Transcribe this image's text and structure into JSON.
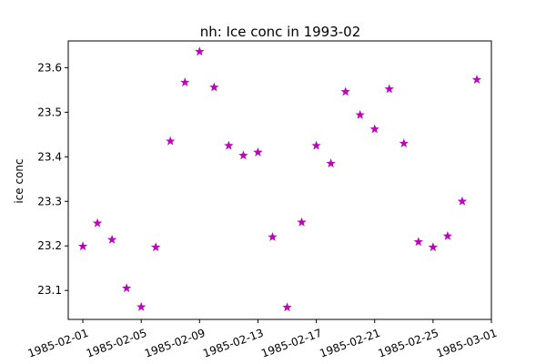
{
  "chart_data": {
    "type": "scatter",
    "title": "nh: Ice conc in 1993-02",
    "xlabel": "",
    "ylabel": "ice conc",
    "xlim": [
      "1985-01-31",
      "1985-03-01"
    ],
    "ylim": [
      23.035,
      23.66
    ],
    "x_ticks": [
      "1985-02-01",
      "1985-02-05",
      "1985-02-09",
      "1985-02-13",
      "1985-02-17",
      "1985-02-21",
      "1985-02-25",
      "1985-03-01"
    ],
    "y_ticks": [
      23.1,
      23.2,
      23.3,
      23.4,
      23.5,
      23.6
    ],
    "y_tick_labels": [
      "23.1",
      "23.2",
      "23.3",
      "23.4",
      "23.5",
      "23.6"
    ],
    "marker": "star",
    "marker_color": "#bf00bf",
    "grid": false,
    "x": [
      "1985-02-01",
      "1985-02-02",
      "1985-02-03",
      "1985-02-04",
      "1985-02-05",
      "1985-02-06",
      "1985-02-07",
      "1985-02-08",
      "1985-02-09",
      "1985-02-10",
      "1985-02-11",
      "1985-02-12",
      "1985-02-13",
      "1985-02-14",
      "1985-02-15",
      "1985-02-16",
      "1985-02-17",
      "1985-02-18",
      "1985-02-19",
      "1985-02-20",
      "1985-02-21",
      "1985-02-22",
      "1985-02-23",
      "1985-02-24",
      "1985-02-25",
      "1985-02-26",
      "1985-02-27",
      "1985-02-28"
    ],
    "y": [
      23.199,
      23.251,
      23.214,
      23.105,
      23.063,
      23.197,
      23.435,
      23.567,
      23.636,
      23.556,
      23.425,
      23.403,
      23.41,
      23.22,
      23.062,
      23.253,
      23.425,
      23.385,
      23.546,
      23.494,
      23.462,
      23.552,
      23.43,
      23.209,
      23.197,
      23.222,
      23.3,
      23.573
    ]
  }
}
